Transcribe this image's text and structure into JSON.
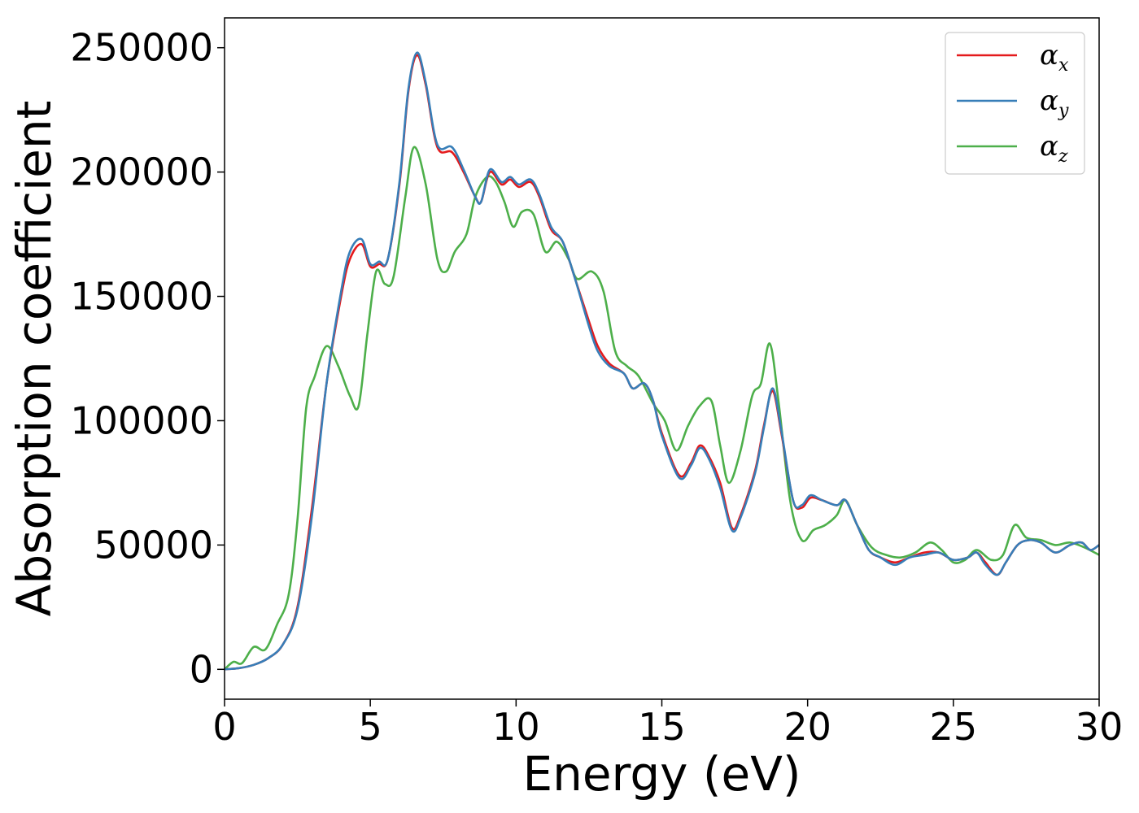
{
  "chart_data": {
    "type": "line",
    "xlabel": "Energy (eV)",
    "ylabel": "Absorption coefficient",
    "xlim": [
      0,
      30
    ],
    "ylim": [
      -12000,
      262000
    ],
    "xticks": [
      "0",
      "5",
      "10",
      "15",
      "20",
      "25",
      "30"
    ],
    "yticks": [
      "0",
      "50000",
      "100000",
      "150000",
      "200000",
      "250000"
    ],
    "grid": false,
    "legend_position": "top-right",
    "series": [
      {
        "name": "α",
        "subscript": "x",
        "color": "#e41a1c",
        "points": [
          [
            0,
            0
          ],
          [
            0.5,
            500
          ],
          [
            1,
            1800
          ],
          [
            1.5,
            4500
          ],
          [
            2,
            10000
          ],
          [
            2.5,
            25000
          ],
          [
            3,
            65000
          ],
          [
            3.5,
            115000
          ],
          [
            4,
            150000
          ],
          [
            4.3,
            165000
          ],
          [
            4.7,
            171000
          ],
          [
            5,
            162000
          ],
          [
            5.3,
            163000
          ],
          [
            5.6,
            165000
          ],
          [
            6,
            195000
          ],
          [
            6.3,
            232000
          ],
          [
            6.6,
            247000
          ],
          [
            6.9,
            235000
          ],
          [
            7.3,
            210000
          ],
          [
            7.8,
            208000
          ],
          [
            8.2,
            200000
          ],
          [
            8.6,
            190000
          ],
          [
            8.8,
            188000
          ],
          [
            9.1,
            200000
          ],
          [
            9.5,
            195000
          ],
          [
            9.8,
            197000
          ],
          [
            10.1,
            194000
          ],
          [
            10.5,
            196000
          ],
          [
            10.8,
            190000
          ],
          [
            11.2,
            177000
          ],
          [
            11.6,
            172000
          ],
          [
            12,
            158000
          ],
          [
            12.5,
            140000
          ],
          [
            12.8,
            130000
          ],
          [
            13.2,
            123000
          ],
          [
            13.7,
            119000
          ],
          [
            14,
            113000
          ],
          [
            14.4,
            115000
          ],
          [
            14.7,
            108000
          ],
          [
            15,
            95000
          ],
          [
            15.6,
            78000
          ],
          [
            16,
            83000
          ],
          [
            16.3,
            90000
          ],
          [
            16.6,
            86000
          ],
          [
            17,
            75000
          ],
          [
            17.4,
            57000
          ],
          [
            17.7,
            62000
          ],
          [
            18.2,
            80000
          ],
          [
            18.5,
            98000
          ],
          [
            18.8,
            112000
          ],
          [
            19.1,
            95000
          ],
          [
            19.5,
            68000
          ],
          [
            19.8,
            65000
          ],
          [
            20.1,
            69000
          ],
          [
            20.5,
            68000
          ],
          [
            21,
            66000
          ],
          [
            21.3,
            68000
          ],
          [
            21.7,
            58000
          ],
          [
            22.1,
            48000
          ],
          [
            22.5,
            45000
          ],
          [
            23,
            43000
          ],
          [
            23.5,
            45000
          ],
          [
            24,
            47000
          ],
          [
            24.5,
            47000
          ],
          [
            25,
            44000
          ],
          [
            25.5,
            45000
          ],
          [
            25.8,
            47000
          ],
          [
            26.1,
            43000
          ],
          [
            26.5,
            38000
          ],
          [
            26.8,
            43000
          ],
          [
            27.2,
            50000
          ],
          [
            27.6,
            52000
          ],
          [
            28,
            51000
          ],
          [
            28.5,
            47000
          ],
          [
            29,
            50000
          ],
          [
            29.4,
            51000
          ],
          [
            29.7,
            48000
          ],
          [
            30,
            50000
          ]
        ]
      },
      {
        "name": "α",
        "subscript": "y",
        "color": "#377eb8",
        "points": [
          [
            0,
            0
          ],
          [
            0.5,
            500
          ],
          [
            1,
            1800
          ],
          [
            1.5,
            4500
          ],
          [
            2,
            10000
          ],
          [
            2.5,
            24000
          ],
          [
            3,
            62000
          ],
          [
            3.5,
            115000
          ],
          [
            4,
            152000
          ],
          [
            4.3,
            168000
          ],
          [
            4.7,
            173000
          ],
          [
            5,
            163000
          ],
          [
            5.3,
            164000
          ],
          [
            5.6,
            165000
          ],
          [
            6,
            196000
          ],
          [
            6.3,
            233000
          ],
          [
            6.6,
            248000
          ],
          [
            6.9,
            236000
          ],
          [
            7.3,
            211000
          ],
          [
            7.8,
            210000
          ],
          [
            8.2,
            201000
          ],
          [
            8.6,
            190000
          ],
          [
            8.8,
            188000
          ],
          [
            9.1,
            201000
          ],
          [
            9.5,
            196000
          ],
          [
            9.8,
            198000
          ],
          [
            10.1,
            195000
          ],
          [
            10.5,
            197000
          ],
          [
            10.8,
            191000
          ],
          [
            11.2,
            178000
          ],
          [
            11.6,
            172000
          ],
          [
            12,
            158000
          ],
          [
            12.5,
            138000
          ],
          [
            12.8,
            128000
          ],
          [
            13.2,
            122000
          ],
          [
            13.7,
            119000
          ],
          [
            14,
            113000
          ],
          [
            14.4,
            115000
          ],
          [
            14.7,
            108000
          ],
          [
            15,
            94000
          ],
          [
            15.6,
            77000
          ],
          [
            16,
            82000
          ],
          [
            16.3,
            89000
          ],
          [
            16.6,
            85000
          ],
          [
            17,
            73000
          ],
          [
            17.4,
            56000
          ],
          [
            17.7,
            61000
          ],
          [
            18.2,
            79000
          ],
          [
            18.5,
            97000
          ],
          [
            18.8,
            113000
          ],
          [
            19.1,
            96000
          ],
          [
            19.5,
            68000
          ],
          [
            19.8,
            66000
          ],
          [
            20.1,
            70000
          ],
          [
            20.5,
            68000
          ],
          [
            21,
            66000
          ],
          [
            21.3,
            68000
          ],
          [
            21.7,
            58000
          ],
          [
            22.1,
            48000
          ],
          [
            22.5,
            45000
          ],
          [
            23,
            42000
          ],
          [
            23.5,
            45000
          ],
          [
            24,
            46000
          ],
          [
            24.5,
            47000
          ],
          [
            25,
            44000
          ],
          [
            25.5,
            45000
          ],
          [
            25.8,
            47000
          ],
          [
            26.1,
            42000
          ],
          [
            26.5,
            38000
          ],
          [
            26.8,
            43000
          ],
          [
            27.2,
            50000
          ],
          [
            27.6,
            52000
          ],
          [
            28,
            51000
          ],
          [
            28.5,
            47000
          ],
          [
            29,
            50000
          ],
          [
            29.4,
            51000
          ],
          [
            29.7,
            48000
          ],
          [
            30,
            50000
          ]
        ]
      },
      {
        "name": "α",
        "subscript": "z",
        "color": "#4daf4a",
        "points": [
          [
            0,
            0
          ],
          [
            0.3,
            3000
          ],
          [
            0.6,
            2500
          ],
          [
            1,
            9000
          ],
          [
            1.4,
            8000
          ],
          [
            1.8,
            18000
          ],
          [
            2.2,
            30000
          ],
          [
            2.5,
            60000
          ],
          [
            2.8,
            105000
          ],
          [
            3.1,
            118000
          ],
          [
            3.5,
            130000
          ],
          [
            3.9,
            122000
          ],
          [
            4.3,
            110000
          ],
          [
            4.6,
            106000
          ],
          [
            4.9,
            135000
          ],
          [
            5.2,
            160000
          ],
          [
            5.5,
            155000
          ],
          [
            5.8,
            158000
          ],
          [
            6.2,
            190000
          ],
          [
            6.5,
            210000
          ],
          [
            6.9,
            195000
          ],
          [
            7.3,
            165000
          ],
          [
            7.6,
            160000
          ],
          [
            7.9,
            168000
          ],
          [
            8.3,
            175000
          ],
          [
            8.6,
            190000
          ],
          [
            9,
            198000
          ],
          [
            9.3,
            196000
          ],
          [
            9.6,
            188000
          ],
          [
            9.9,
            178000
          ],
          [
            10.2,
            184000
          ],
          [
            10.6,
            183000
          ],
          [
            11,
            168000
          ],
          [
            11.4,
            172000
          ],
          [
            11.8,
            165000
          ],
          [
            12.1,
            157000
          ],
          [
            12.6,
            160000
          ],
          [
            13,
            152000
          ],
          [
            13.4,
            128000
          ],
          [
            13.8,
            122000
          ],
          [
            14.2,
            118000
          ],
          [
            14.7,
            107000
          ],
          [
            15.1,
            100000
          ],
          [
            15.5,
            88000
          ],
          [
            15.9,
            98000
          ],
          [
            16.3,
            106000
          ],
          [
            16.7,
            108000
          ],
          [
            17,
            90000
          ],
          [
            17.3,
            75000
          ],
          [
            17.7,
            88000
          ],
          [
            18.1,
            110000
          ],
          [
            18.4,
            115000
          ],
          [
            18.7,
            131000
          ],
          [
            19,
            108000
          ],
          [
            19.4,
            68000
          ],
          [
            19.8,
            52000
          ],
          [
            20.2,
            56000
          ],
          [
            20.6,
            58000
          ],
          [
            21,
            62000
          ],
          [
            21.3,
            68000
          ],
          [
            21.7,
            58000
          ],
          [
            22.2,
            49000
          ],
          [
            22.7,
            46000
          ],
          [
            23.2,
            45000
          ],
          [
            23.7,
            47000
          ],
          [
            24.2,
            51000
          ],
          [
            24.6,
            48000
          ],
          [
            25,
            43000
          ],
          [
            25.4,
            44000
          ],
          [
            25.8,
            48000
          ],
          [
            26.3,
            44000
          ],
          [
            26.7,
            46000
          ],
          [
            27.1,
            58000
          ],
          [
            27.5,
            53000
          ],
          [
            28,
            52000
          ],
          [
            28.5,
            50000
          ],
          [
            29,
            51000
          ],
          [
            29.5,
            49000
          ],
          [
            30,
            46000
          ]
        ]
      }
    ]
  }
}
